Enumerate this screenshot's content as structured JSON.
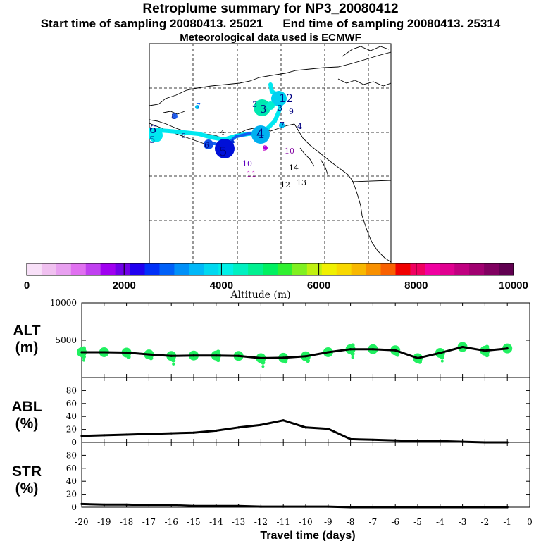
{
  "header": {
    "title": "Retroplume summary for NP3_20080412",
    "start_label": "Start time of sampling 20080413. 25021",
    "end_label": "End time of sampling 20080413. 25314",
    "met_label": "Meteorological data used is ECMWF"
  },
  "colorbar": {
    "label": "Altitude (m)",
    "ticks": [
      "0",
      "2000",
      "4000",
      "6000",
      "8000",
      "10000"
    ],
    "colors": [
      "#f8e0f8",
      "#f0c0f0",
      "#e8a0f0",
      "#e070f0",
      "#c040f0",
      "#a000f0",
      "#7000e8",
      "#2000f0",
      "#0030f8",
      "#0060f8",
      "#0090f8",
      "#00b8f8",
      "#00d8f0",
      "#00f0e8",
      "#00f0c0",
      "#00f090",
      "#00f060",
      "#30f030",
      "#80f020",
      "#c0f010",
      "#f0f000",
      "#f8d800",
      "#f8b800",
      "#f89000",
      "#f86000",
      "#f00000",
      "#f00060",
      "#f000a0",
      "#e00090",
      "#c00080",
      "#a00070",
      "#800060",
      "#600050"
    ]
  },
  "map": {
    "plume_labels": [
      {
        "text": "12",
        "color": "#000080"
      },
      {
        "text": "3",
        "color": "#000080"
      },
      {
        "text": "3",
        "color": "#000080"
      },
      {
        "text": "3",
        "color": "#000080"
      },
      {
        "text": "9",
        "color": "#000080"
      },
      {
        "text": "7",
        "color": "#1060f0"
      },
      {
        "text": "8",
        "color": "#2030a0"
      },
      {
        "text": "6",
        "color": "#000080"
      },
      {
        "text": "5",
        "color": "#000080"
      },
      {
        "text": "4",
        "color": "#000080"
      },
      {
        "text": "4",
        "color": "#000080"
      },
      {
        "text": "5",
        "color": "#000080"
      },
      {
        "text": "6",
        "color": "#000080"
      },
      {
        "text": "7",
        "color": "#000080"
      },
      {
        "text": "9",
        "color": "#c000c0"
      },
      {
        "text": "10",
        "color": "#8000a0"
      },
      {
        "text": "11",
        "color": "#c000c0"
      },
      {
        "text": "10",
        "color": "#6000c0"
      },
      {
        "text": "14",
        "color": "#000000"
      },
      {
        "text": "12",
        "color": "#000000"
      },
      {
        "text": "13",
        "color": "#000000"
      },
      {
        "text": "4",
        "color": "#000000"
      },
      {
        "text": "5",
        "color": "#1030a0"
      }
    ]
  },
  "chart_data": [
    {
      "type": "line",
      "panel": "ALT",
      "ylabel_line1": "ALT",
      "ylabel_line2": "(m)",
      "ylim": [
        0,
        10000
      ],
      "yticks": [
        "10000",
        "5000"
      ],
      "x": [
        -20,
        -19,
        -18,
        -17,
        -16,
        -15,
        -14,
        -13,
        -12,
        -11,
        -10,
        -9,
        -8,
        -7,
        -6,
        -5,
        -4,
        -3,
        -2,
        -1
      ],
      "values": [
        3400,
        3400,
        3350,
        3100,
        2900,
        2950,
        2950,
        2900,
        2600,
        2650,
        2850,
        3400,
        3800,
        3800,
        3650,
        2600,
        3300,
        4100,
        3600,
        3900
      ]
    },
    {
      "type": "line",
      "panel": "ABL",
      "ylabel_line1": "ABL",
      "ylabel_line2": "(%)",
      "ylim": [
        0,
        100
      ],
      "yticks": [
        "80",
        "60",
        "40",
        "20",
        "0"
      ],
      "x": [
        -20,
        -19,
        -18,
        -17,
        -16,
        -15,
        -14,
        -13,
        -12,
        -11,
        -10,
        -9,
        -8,
        -7,
        -6,
        -5,
        -4,
        -3,
        -2,
        -1
      ],
      "values": [
        10,
        11,
        12,
        13,
        14,
        15,
        18,
        23,
        27,
        34,
        23,
        21,
        5,
        4,
        3,
        2,
        2,
        1,
        0,
        0
      ]
    },
    {
      "type": "line",
      "panel": "STR",
      "ylabel_line1": "STR",
      "ylabel_line2": "(%)",
      "ylim": [
        0,
        100
      ],
      "yticks": [
        "80",
        "60",
        "40",
        "20",
        "0"
      ],
      "x": [
        -20,
        -19,
        -18,
        -17,
        -16,
        -15,
        -14,
        -13,
        -12,
        -11,
        -10,
        -9,
        -8,
        -7,
        -6,
        -5,
        -4,
        -3,
        -2,
        -1
      ],
      "values": [
        5,
        4,
        4,
        3,
        3,
        2,
        2,
        2,
        1,
        1,
        1,
        1,
        0,
        0,
        0,
        0,
        0,
        0,
        0,
        0
      ]
    }
  ],
  "xaxis": {
    "label": "Travel time (days)",
    "ticks": [
      "-20",
      "-19",
      "-18",
      "-17",
      "-16",
      "-15",
      "-14",
      "-13",
      "-12",
      "-11",
      "-10",
      "-9",
      "-8",
      "-7",
      "-6",
      "-5",
      "-4",
      "-3",
      "-2",
      "-1",
      "0"
    ]
  }
}
